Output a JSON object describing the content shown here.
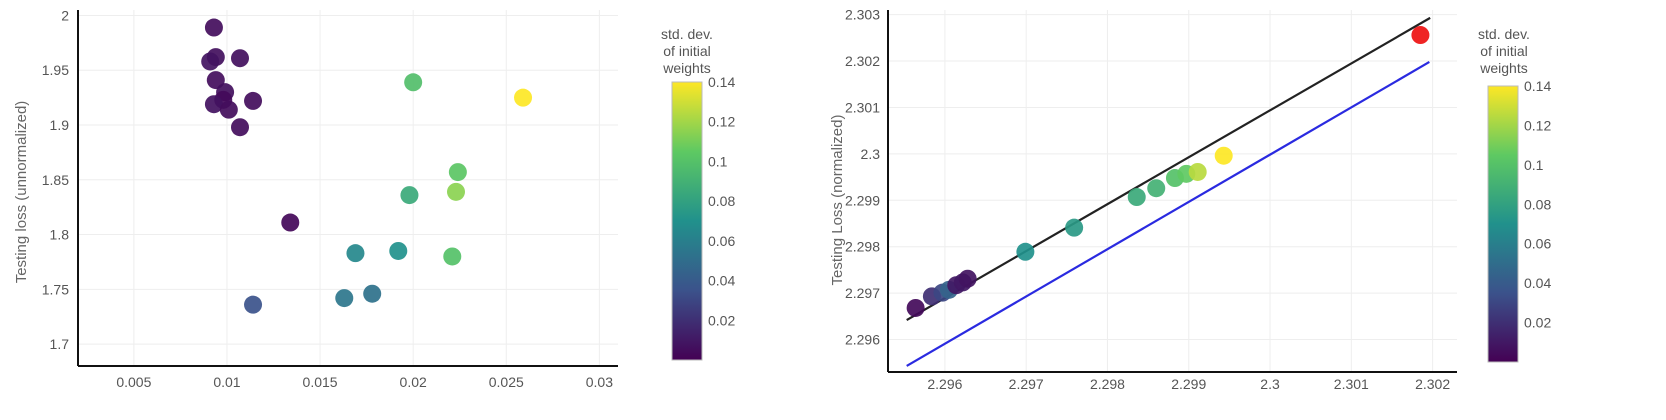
{
  "chart_data": [
    {
      "type": "scatter",
      "title": "",
      "xlabel": "",
      "ylabel": "Testing loss (unnormalized)",
      "xlim": [
        0.002,
        0.031
      ],
      "ylim": [
        1.68,
        2.005
      ],
      "x_ticks": [
        "0.005",
        "0.01",
        "0.015",
        "0.02",
        "0.025",
        "0.03"
      ],
      "y_ticks": [
        "1.7",
        "1.75",
        "1.8",
        "1.85",
        "1.9",
        "1.95",
        "2"
      ],
      "grid": true,
      "colorbar": {
        "title_lines": [
          "std. dev.",
          "of initial",
          "weights"
        ],
        "range": [
          0.0,
          0.14
        ],
        "ticks": [
          "0.14",
          "0.12",
          "0.1",
          "0.08",
          "0.06",
          "0.04",
          "0.02"
        ],
        "colorscale": [
          "#440154",
          "#3b528b",
          "#21918c",
          "#5ec962",
          "#fde725"
        ]
      },
      "points": [
        {
          "x": 0.0093,
          "y": 1.989,
          "c": 0.005
        },
        {
          "x": 0.0094,
          "y": 1.962,
          "c": 0.006
        },
        {
          "x": 0.0107,
          "y": 1.961,
          "c": 0.006
        },
        {
          "x": 0.0091,
          "y": 1.958,
          "c": 0.008
        },
        {
          "x": 0.0094,
          "y": 1.941,
          "c": 0.005
        },
        {
          "x": 0.0099,
          "y": 1.93,
          "c": 0.006
        },
        {
          "x": 0.0098,
          "y": 1.923,
          "c": 0.004
        },
        {
          "x": 0.0114,
          "y": 1.922,
          "c": 0.005
        },
        {
          "x": 0.0093,
          "y": 1.919,
          "c": 0.007
        },
        {
          "x": 0.0101,
          "y": 1.914,
          "c": 0.005
        },
        {
          "x": 0.0107,
          "y": 1.898,
          "c": 0.005
        },
        {
          "x": 0.0134,
          "y": 1.811,
          "c": 0.003
        },
        {
          "x": 0.0114,
          "y": 1.736,
          "c": 0.035
        },
        {
          "x": 0.0163,
          "y": 1.742,
          "c": 0.055
        },
        {
          "x": 0.0178,
          "y": 1.746,
          "c": 0.052
        },
        {
          "x": 0.0169,
          "y": 1.783,
          "c": 0.065
        },
        {
          "x": 0.0192,
          "y": 1.785,
          "c": 0.07
        },
        {
          "x": 0.0198,
          "y": 1.836,
          "c": 0.085
        },
        {
          "x": 0.02,
          "y": 1.939,
          "c": 0.098
        },
        {
          "x": 0.0221,
          "y": 1.78,
          "c": 0.1
        },
        {
          "x": 0.0224,
          "y": 1.857,
          "c": 0.103
        },
        {
          "x": 0.0223,
          "y": 1.839,
          "c": 0.115
        },
        {
          "x": 0.0259,
          "y": 1.925,
          "c": 0.14
        }
      ]
    },
    {
      "type": "scatter",
      "title": "",
      "xlabel": "",
      "ylabel": "Testing Loss (normalized)",
      "xlim": [
        2.2953,
        2.3023
      ],
      "ylim": [
        2.2953,
        2.3031
      ],
      "x_ticks": [
        "2.296",
        "2.297",
        "2.298",
        "2.299",
        "2.3",
        "2.301",
        "2.302"
      ],
      "y_ticks": [
        "2.296",
        "2.297",
        "2.298",
        "2.299",
        "2.3",
        "2.301",
        "2.302",
        "2.303"
      ],
      "grid": true,
      "colorbar": {
        "title_lines": [
          "std. dev.",
          "of initial",
          "weights"
        ],
        "range": [
          0.0,
          0.14
        ],
        "ticks": [
          "0.14",
          "0.12",
          "0.1",
          "0.08",
          "0.06",
          "0.04",
          "0.02"
        ],
        "colorscale": [
          "#440154",
          "#3b528b",
          "#21918c",
          "#5ec962",
          "#fde725"
        ]
      },
      "lines": [
        {
          "color": "#222222",
          "points": [
            [
              2.29553,
              2.29642
            ],
            [
              2.30197,
              2.30293
            ]
          ]
        },
        {
          "color": "#2a2ae0",
          "points": [
            [
              2.29553,
              2.29543
            ],
            [
              2.30196,
              2.30198
            ]
          ]
        }
      ],
      "points": [
        {
          "x": 2.29564,
          "y": 2.29668,
          "c": 0.004
        },
        {
          "x": 2.29584,
          "y": 2.29693,
          "c": 0.02
        },
        {
          "x": 2.29597,
          "y": 2.29701,
          "c": 0.03
        },
        {
          "x": 2.29605,
          "y": 2.29707,
          "c": 0.045
        },
        {
          "x": 2.29614,
          "y": 2.29717,
          "c": 0.01
        },
        {
          "x": 2.29622,
          "y": 2.29723,
          "c": 0.01
        },
        {
          "x": 2.29628,
          "y": 2.29731,
          "c": 0.008
        },
        {
          "x": 2.29699,
          "y": 2.29789,
          "c": 0.07
        },
        {
          "x": 2.29759,
          "y": 2.29841,
          "c": 0.075
        },
        {
          "x": 2.29836,
          "y": 2.29907,
          "c": 0.085
        },
        {
          "x": 2.2986,
          "y": 2.29926,
          "c": 0.09
        },
        {
          "x": 2.29883,
          "y": 2.29948,
          "c": 0.1
        },
        {
          "x": 2.29897,
          "y": 2.29957,
          "c": 0.105
        },
        {
          "x": 2.29911,
          "y": 2.29961,
          "c": 0.125
        },
        {
          "x": 2.29943,
          "y": 2.29996,
          "c": 0.14
        },
        {
          "x": 2.30185,
          "y": 2.30256,
          "c": 0.15,
          "color": "#ee1111"
        }
      ]
    }
  ]
}
